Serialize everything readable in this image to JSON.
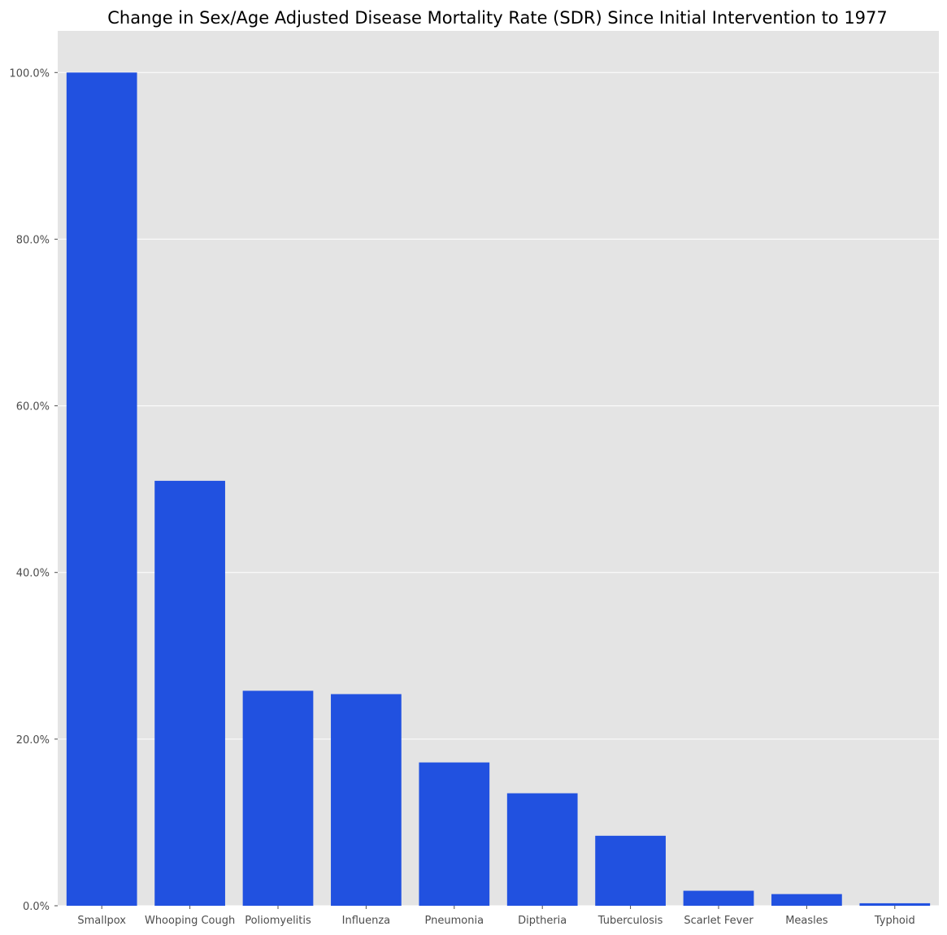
{
  "chart_data": {
    "type": "bar",
    "title": "Change in Sex/Age Adjusted Disease Mortality Rate (SDR) Since Initial Intervention to 1977",
    "xlabel": "",
    "ylabel": "",
    "categories": [
      "Smallpox",
      "Whooping Cough",
      "Poliomyelitis",
      "Influenza",
      "Pneumonia",
      "Diptheria",
      "Tuberculosis",
      "Scarlet Fever",
      "Measles",
      "Typhoid"
    ],
    "values": [
      100.0,
      51.0,
      25.8,
      25.4,
      17.2,
      13.5,
      8.4,
      1.8,
      1.4,
      0.3
    ],
    "ylim": [
      0,
      105
    ],
    "yticks": [
      0,
      20,
      40,
      60,
      80,
      100
    ],
    "ytick_labels": [
      "0.0%",
      "20.0%",
      "40.0%",
      "60.0%",
      "80.0%",
      "100.0%"
    ],
    "grid": true,
    "legend": "none",
    "colors": {
      "bar": "#2151e0",
      "plot_background": "#e4e4e4",
      "grid": "#ffffff",
      "tick_text": "#4d4d4d"
    }
  }
}
